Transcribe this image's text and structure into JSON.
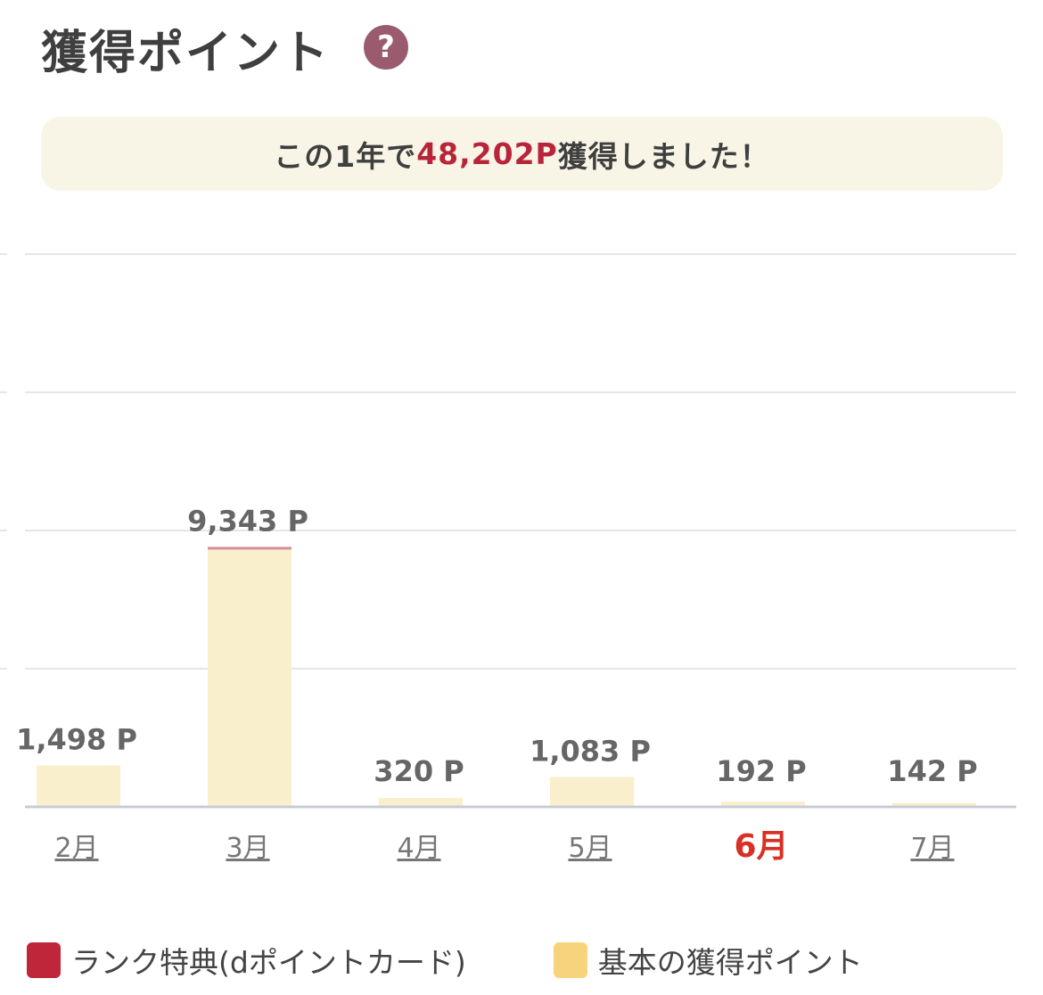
{
  "header": {
    "title": "獲得ポイント",
    "help_icon": "?"
  },
  "summary": {
    "prefix": "この1年で",
    "amount": "48,202P",
    "suffix": "獲得しました！"
  },
  "colors": {
    "basic": "#f9efcc",
    "rank": "#c0263a",
    "current_month": "#d93025",
    "axis": "#c7cbd6",
    "grid": "#e6e6e6"
  },
  "chart_data": {
    "type": "bar",
    "categories": [
      "2月",
      "3月",
      "4月",
      "5月",
      "6月",
      "7月"
    ],
    "value_labels": [
      "1,498 P",
      "9,343 P",
      "320 P",
      "1,083 P",
      "192 P",
      "142 P"
    ],
    "current_category": "6月",
    "series": [
      {
        "name": "基本の獲得ポイント",
        "values": [
          1498,
          9310,
          320,
          1083,
          192,
          142
        ]
      },
      {
        "name": "ランク特典(dポイントカード)",
        "values": [
          0,
          33,
          0,
          0,
          0,
          0
        ]
      }
    ],
    "ylim": [
      0,
      20000
    ],
    "gridlines": 4
  },
  "legend": [
    {
      "label": "ランク特典(dポイントカード)",
      "color": "#c0263a"
    },
    {
      "label": "基本の獲得ポイント",
      "color": "#f7d47c"
    }
  ]
}
